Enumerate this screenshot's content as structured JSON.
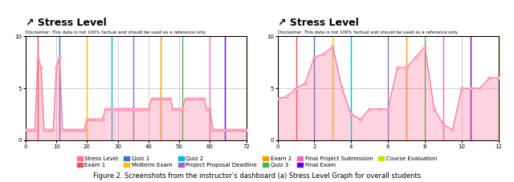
{
  "caption": "Figure 2. Screenshots from the instructor’s dashboard (a) Stress Level Graph for overall students",
  "chart_data": [
    {
      "type": "area",
      "title": "↗ Stress Level",
      "subtitle": "Disclaimer: This data is not 100% factual and should be used as a reference only",
      "x": [
        0,
        1,
        2,
        3,
        4,
        5,
        6,
        7,
        8,
        9,
        10,
        11,
        12,
        13,
        14,
        15,
        16,
        17,
        18,
        19,
        20,
        21,
        22,
        23,
        24,
        25,
        26,
        27,
        28,
        29,
        30,
        31,
        32,
        33,
        34,
        35,
        36,
        37,
        38,
        39,
        40,
        41,
        42,
        43,
        44,
        45,
        46,
        47,
        48,
        49,
        50,
        51,
        52,
        53,
        54,
        55,
        56,
        57,
        58,
        59,
        60,
        61,
        62,
        63,
        64,
        65,
        66,
        67,
        68,
        69,
        70,
        71,
        72
      ],
      "series": [
        {
          "name": "Stress Level",
          "color": "#ff7096",
          "marker": "o",
          "values": [
            1,
            1,
            1,
            1,
            8,
            7,
            1,
            1,
            1,
            1,
            7,
            8,
            1,
            1,
            1,
            1,
            1,
            1,
            1,
            1,
            2,
            2,
            2,
            2,
            2,
            2,
            3,
            3,
            3,
            3,
            3,
            3,
            3,
            3,
            3,
            3,
            3,
            3,
            3,
            3,
            3,
            4,
            4,
            4,
            4,
            4,
            4,
            4,
            3,
            3,
            3,
            3,
            4,
            4,
            4,
            4,
            4,
            4,
            4,
            3,
            3,
            1,
            1,
            1,
            1,
            1,
            1,
            1,
            1,
            1,
            1,
            1,
            1
          ]
        }
      ],
      "events": [
        {
          "name": "Exam 1",
          "x": 4,
          "color": "#ff4d4d"
        },
        {
          "name": "Quiz 1",
          "x": 11,
          "color": "#4472c4"
        },
        {
          "name": "Midterm Exam",
          "x": 20,
          "color": "#ffc000"
        },
        {
          "name": "Quiz 2",
          "x": 28,
          "color": "#00bcd4"
        },
        {
          "name": "Project Proposal Deadline",
          "x": 35,
          "color": "#9966cc"
        },
        {
          "name": "Exam 2",
          "x": 44,
          "color": "#ff9800"
        },
        {
          "name": "Quiz 3",
          "x": 51,
          "color": "#4caf50"
        },
        {
          "name": "Final Project Submission",
          "x": 60,
          "color": "#ff69b4"
        },
        {
          "name": "Final Exam",
          "x": 65,
          "color": "#6600cc"
        },
        {
          "name": "Course Evaluation",
          "x": 72,
          "color": "#ccdd00"
        }
      ],
      "xlim": [
        0,
        72
      ],
      "xticks": [
        0,
        10,
        20,
        30,
        40,
        50,
        60,
        72
      ],
      "ylim": [
        0,
        10
      ],
      "yticks": [
        0,
        5,
        10
      ],
      "grid": true,
      "legend": "lower center"
    },
    {
      "type": "area",
      "title": "↗ Stress Level",
      "subtitle": "Disclaimer: This data is not 100% factual and should be used as a reference only",
      "x": [
        0,
        0.5,
        1,
        1.5,
        2,
        2.5,
        3,
        3.5,
        4,
        4.5,
        5,
        5.5,
        6,
        6.5,
        7,
        7.5,
        8,
        8.5,
        9,
        9.5,
        10,
        10.5,
        11,
        11.5,
        12
      ],
      "series": [
        {
          "name": "Stress Level",
          "color": "#ff7096",
          "marker": "o",
          "values": [
            4,
            4.2,
            5,
            5.5,
            8,
            8.3,
            9,
            5,
            2.5,
            2,
            3,
            3,
            3,
            7,
            7,
            8,
            9,
            3,
            1.5,
            1,
            5,
            5,
            5,
            6,
            6
          ]
        }
      ],
      "events": [
        {
          "name": "Exam 1",
          "x": 1,
          "color": "#ff4d4d"
        },
        {
          "name": "Quiz 1",
          "x": 2,
          "color": "#4472c4"
        },
        {
          "name": "Midterm Exam",
          "x": 3,
          "color": "#ffc000"
        },
        {
          "name": "Quiz 2",
          "x": 4,
          "color": "#00bcd4"
        },
        {
          "name": "Project Proposal Deadline",
          "x": 6,
          "color": "#9966cc"
        },
        {
          "name": "Exam 2",
          "x": 7,
          "color": "#ff9800"
        },
        {
          "name": "Quiz 3",
          "x": 8,
          "color": "#4caf50"
        },
        {
          "name": "Final Project Submission",
          "x": 9,
          "color": "#ff69b4"
        },
        {
          "name": "Final Exam",
          "x": 10.5,
          "color": "#6600cc"
        },
        {
          "name": "Course Evaluation",
          "x": 12,
          "color": "#ccdd00"
        }
      ],
      "xlim": [
        0,
        12
      ],
      "xticks": [
        0,
        2,
        4,
        6,
        8,
        10,
        12
      ],
      "ylim": [
        0,
        10
      ],
      "yticks": [
        0,
        5,
        10
      ],
      "grid": true,
      "legend": "lower center"
    }
  ]
}
